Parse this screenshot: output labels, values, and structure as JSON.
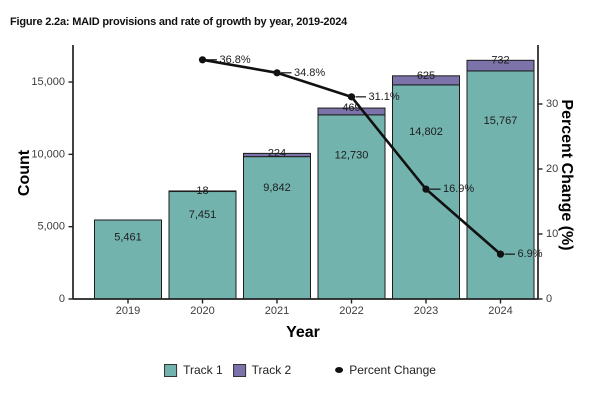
{
  "title": "Figure 2.2a: MAID provisions and rate of growth by year, 2019-2024",
  "colors": {
    "track1": "#72b3ae",
    "track2": "#7b73aa",
    "line": "#111111",
    "bar_border": "#1c1c1c",
    "axis": "#222222",
    "tick_text": "#3d3d3d",
    "bar_label_text": "#1d1d1d",
    "background": "#ffffff"
  },
  "chart_data": {
    "type": "bar",
    "subtype": "stacked-bars-with-line-overlay",
    "grid": false,
    "legend_position": "bottom",
    "categories": [
      "2019",
      "2020",
      "2021",
      "2022",
      "2023",
      "2024"
    ],
    "series": [
      {
        "name": "Track 1",
        "color": "#72b3ae",
        "values": [
          5461,
          7451,
          9842,
          12730,
          14802,
          15767
        ],
        "labels": [
          "5,461",
          "7,451",
          "9,842",
          "12,730",
          "14,802",
          "15,767"
        ]
      },
      {
        "name": "Track 2",
        "color": "#7b73aa",
        "values": [
          null,
          18,
          224,
          469,
          625,
          732
        ],
        "labels": [
          null,
          "18",
          "224",
          "469",
          "625",
          "732"
        ]
      }
    ],
    "line": {
      "name": "Percent Change",
      "color": "#111111",
      "values": [
        null,
        36.8,
        34.8,
        31.1,
        16.9,
        6.9
      ],
      "labels": [
        null,
        "36.8%",
        "34.8%",
        "31.1%",
        "16.9%",
        "6.9%"
      ]
    },
    "xlabel": "Year",
    "ylabel_left": "Count",
    "ylabel_right": "Percent Change (%)",
    "y_left_axis": {
      "min": 0,
      "max": 15000,
      "tick_values": [
        0,
        5000,
        10000,
        15000
      ],
      "tick_labels": [
        "0",
        "5,000",
        "10,000",
        "15,000"
      ]
    },
    "y_right_axis": {
      "min": 0,
      "max": 30,
      "tick_values": [
        0,
        10,
        20,
        30
      ],
      "tick_labels": [
        "0",
        "10",
        "20",
        "30"
      ]
    }
  }
}
